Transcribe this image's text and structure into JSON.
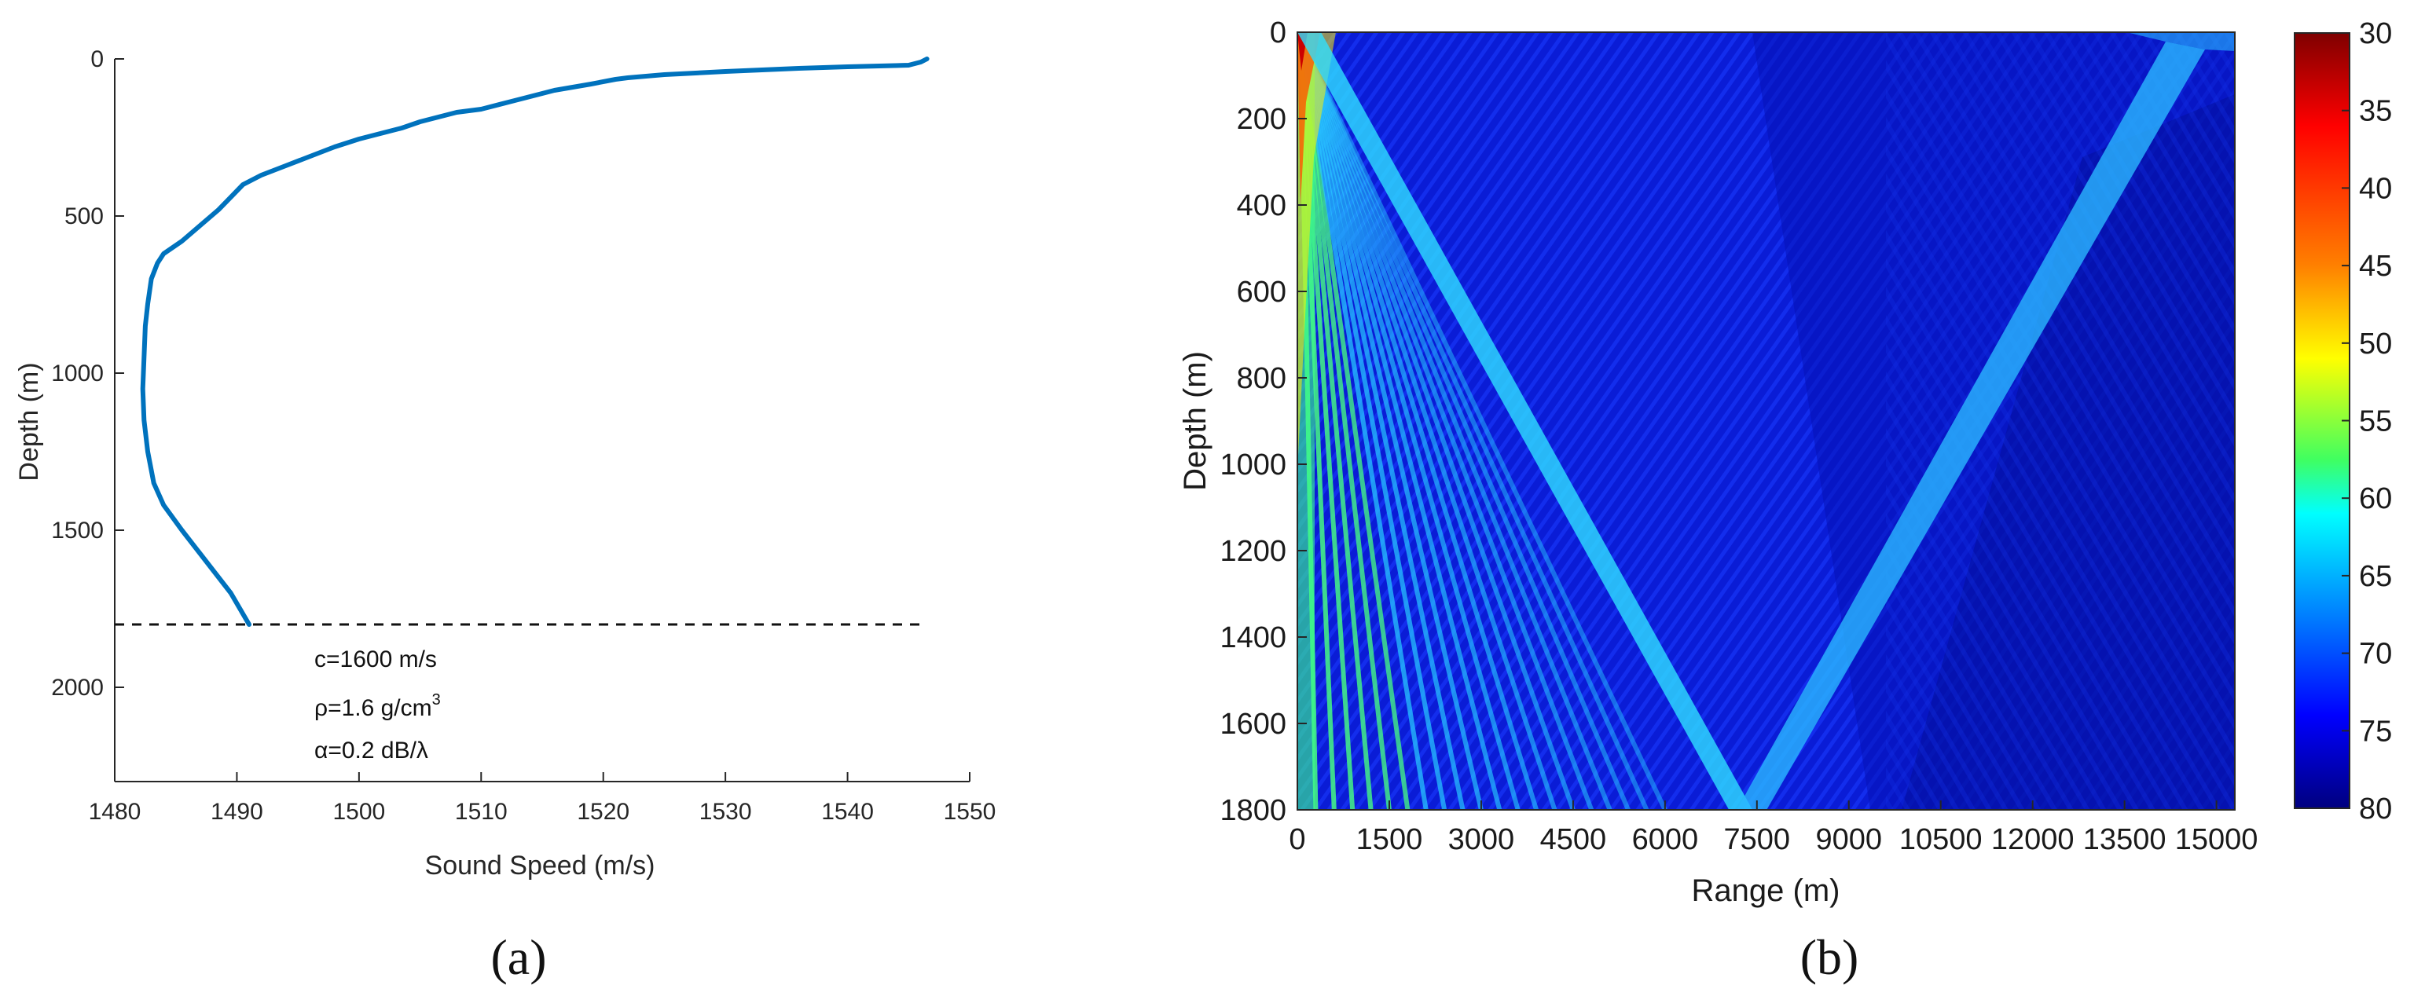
{
  "chart_data": [
    {
      "panel": "(a)",
      "type": "line",
      "xlabel": "Sound Speed (m/s)",
      "ylabel": "Depth (m)",
      "xlim": [
        1480,
        1550
      ],
      "ylim": [
        0,
        2300
      ],
      "y_inverted": true,
      "x_ticks": [
        1480,
        1490,
        1500,
        1510,
        1520,
        1530,
        1540,
        1550
      ],
      "y_ticks": [
        0,
        500,
        1000,
        1500,
        2000
      ],
      "grid": false,
      "line_color": "#0072BD",
      "series": [
        {
          "x": [
            1546.5,
            1546,
            1545,
            1540,
            1536,
            1530,
            1525,
            1522,
            1521,
            1519,
            1516,
            1513,
            1510,
            1508,
            1505,
            1503.5,
            1502,
            1500,
            1498,
            1496,
            1494,
            1492,
            1490.5,
            1489.5,
            1488.5,
            1487,
            1485.5,
            1484,
            1483.5,
            1483,
            1482.7,
            1482.5,
            1482.4,
            1482.3,
            1482.4,
            1482.7,
            1483.2,
            1484,
            1485.5,
            1487.5,
            1489.5,
            1491
          ],
          "y": [
            0,
            10,
            20,
            25,
            30,
            40,
            50,
            60,
            65,
            80,
            100,
            130,
            160,
            170,
            200,
            220,
            235,
            255,
            280,
            310,
            340,
            370,
            400,
            440,
            480,
            530,
            580,
            620,
            650,
            700,
            780,
            850,
            950,
            1050,
            1150,
            1250,
            1350,
            1420,
            1500,
            1600,
            1700,
            1800
          ]
        }
      ],
      "annotations": {
        "boundary_depth": 1800,
        "lines": [
          "c=1600 m/s",
          "ρ=1.6 g/cm",
          "α=0.2 dB/λ"
        ],
        "superscript": "3"
      }
    },
    {
      "panel": "(b)",
      "type": "heatmap",
      "xlabel": "Range (m)",
      "ylabel": "Depth (m)",
      "xlim": [
        0,
        15300
      ],
      "ylim": [
        0,
        1800
      ],
      "y_inverted": true,
      "x_ticks": [
        0,
        1500,
        3000,
        4500,
        6000,
        7500,
        9000,
        10500,
        12000,
        13500,
        15000
      ],
      "y_ticks": [
        0,
        200,
        400,
        600,
        800,
        1000,
        1200,
        1400,
        1600,
        1800
      ],
      "colorbar": {
        "ticks": [
          30,
          35,
          40,
          45,
          50,
          55,
          60,
          65,
          70,
          75,
          80
        ],
        "range": [
          30,
          80
        ],
        "colormap": "jet (reversed, 30 = red, 80 = dark blue)"
      },
      "features": {
        "direct_beam_bottom_hit_range": 7300,
        "reflected_beam_surface_hit_range": 14300,
        "near_field_fan_ranges": [
          0,
          6000
        ]
      }
    }
  ],
  "labels": {
    "panel_a": "(a)",
    "panel_b": "(b)"
  }
}
